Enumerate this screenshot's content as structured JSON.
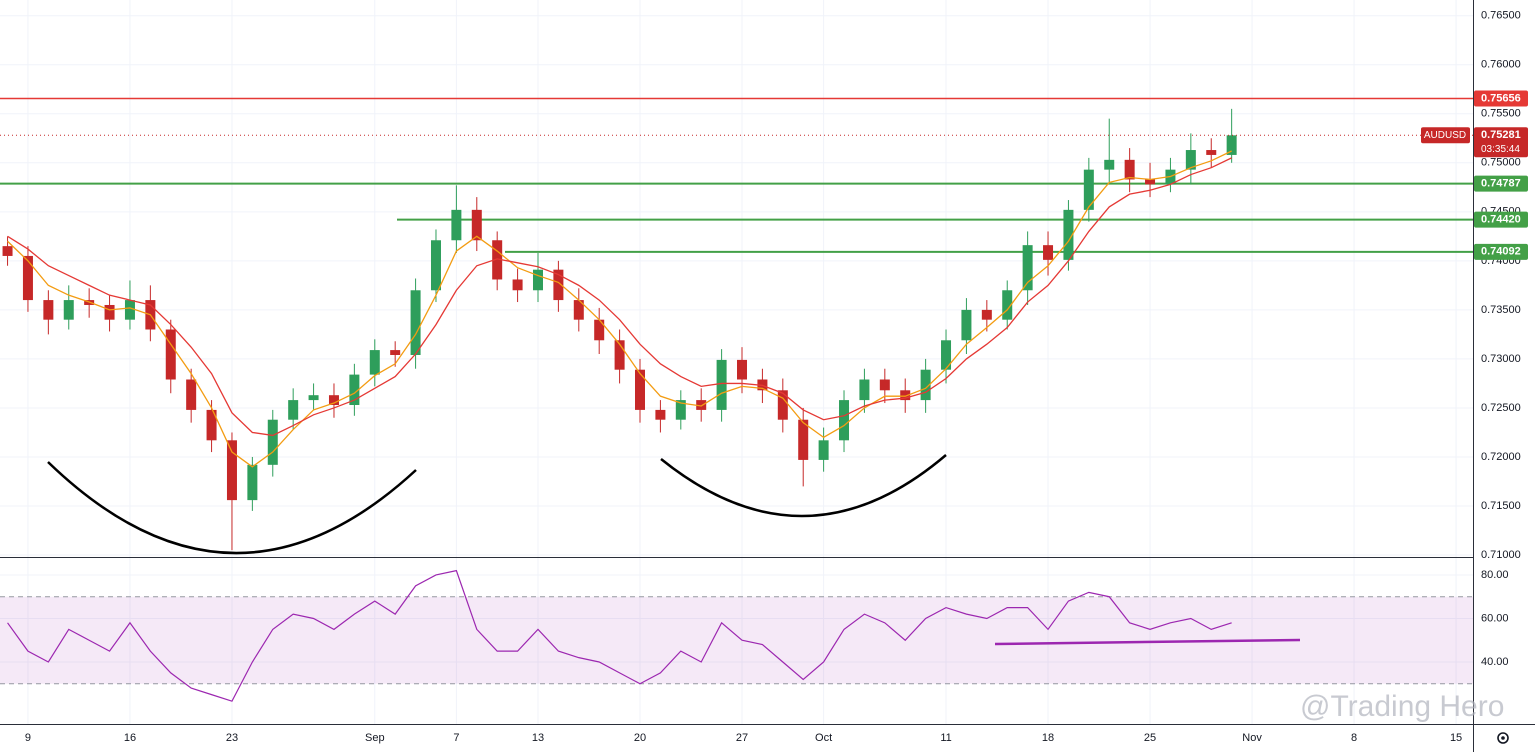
{
  "chart_data": [
    {
      "type": "candlestick",
      "symbol": "AUDUSD",
      "countdown": "03:35:44",
      "x": [
        -1,
        0,
        1,
        2,
        3,
        4,
        5,
        6,
        7,
        8,
        9,
        10,
        11,
        12,
        13,
        14,
        15,
        16,
        17,
        18,
        19,
        20,
        21,
        22,
        23,
        24,
        25,
        26,
        27,
        28,
        29,
        30,
        31,
        32,
        33,
        34,
        35,
        36,
        37,
        38,
        39,
        40,
        41,
        42,
        43,
        44,
        45,
        46,
        47,
        48,
        49,
        50,
        51,
        52,
        53,
        54,
        55,
        56,
        57,
        58,
        59
      ],
      "open": [
        0.7415,
        0.7405,
        0.736,
        0.734,
        0.736,
        0.7355,
        0.734,
        0.736,
        0.733,
        0.7279,
        0.7248,
        0.7217,
        0.7156,
        0.7192,
        0.7238,
        0.7258,
        0.7263,
        0.7253,
        0.7284,
        0.7309,
        0.7304,
        0.737,
        0.7421,
        0.7452,
        0.7421,
        0.7381,
        0.737,
        0.7391,
        0.736,
        0.734,
        0.7319,
        0.7289,
        0.7248,
        0.7238,
        0.7258,
        0.7248,
        0.7299,
        0.7279,
        0.7268,
        0.7238,
        0.7197,
        0.7217,
        0.7258,
        0.7279,
        0.7268,
        0.7258,
        0.7289,
        0.7319,
        0.735,
        0.734,
        0.737,
        0.7416,
        0.7401,
        0.7452,
        0.7493,
        0.7503,
        0.7483,
        0.7478,
        0.7493,
        0.7513,
        0.7508
      ],
      "high": [
        0.7425,
        0.7415,
        0.737,
        0.7375,
        0.7372,
        0.7365,
        0.738,
        0.7375,
        0.734,
        0.729,
        0.7258,
        0.7225,
        0.72,
        0.7248,
        0.727,
        0.7275,
        0.7275,
        0.7295,
        0.732,
        0.7318,
        0.7382,
        0.7432,
        0.7477,
        0.7465,
        0.743,
        0.7392,
        0.7408,
        0.74,
        0.7372,
        0.7352,
        0.733,
        0.73,
        0.7258,
        0.7268,
        0.727,
        0.731,
        0.7312,
        0.729,
        0.728,
        0.725,
        0.723,
        0.7268,
        0.729,
        0.729,
        0.728,
        0.73,
        0.733,
        0.7362,
        0.736,
        0.738,
        0.743,
        0.743,
        0.7462,
        0.7505,
        0.7545,
        0.7515,
        0.75,
        0.7505,
        0.753,
        0.7525,
        0.7555
      ],
      "low": [
        0.7395,
        0.7348,
        0.7325,
        0.733,
        0.7342,
        0.7328,
        0.733,
        0.7318,
        0.7265,
        0.7235,
        0.7205,
        0.7105,
        0.7145,
        0.718,
        0.7228,
        0.7248,
        0.724,
        0.7242,
        0.7272,
        0.7292,
        0.729,
        0.7358,
        0.7408,
        0.741,
        0.737,
        0.7358,
        0.7358,
        0.7348,
        0.7328,
        0.7305,
        0.7275,
        0.7235,
        0.7225,
        0.7228,
        0.7236,
        0.7236,
        0.7265,
        0.7255,
        0.7225,
        0.717,
        0.7185,
        0.7205,
        0.7245,
        0.7255,
        0.7245,
        0.7245,
        0.7275,
        0.7305,
        0.7328,
        0.733,
        0.7355,
        0.7385,
        0.739,
        0.744,
        0.748,
        0.747,
        0.7465,
        0.747,
        0.7478,
        0.7495,
        0.75
      ],
      "close": [
        0.7405,
        0.736,
        0.734,
        0.736,
        0.7355,
        0.734,
        0.736,
        0.733,
        0.7279,
        0.7248,
        0.7217,
        0.7156,
        0.7192,
        0.7238,
        0.7258,
        0.7263,
        0.7253,
        0.7284,
        0.7309,
        0.7304,
        0.737,
        0.7421,
        0.7452,
        0.7421,
        0.7381,
        0.737,
        0.7391,
        0.736,
        0.734,
        0.7319,
        0.7289,
        0.7248,
        0.7238,
        0.7258,
        0.7248,
        0.7299,
        0.7279,
        0.7268,
        0.7238,
        0.7197,
        0.7217,
        0.7258,
        0.7279,
        0.7268,
        0.7258,
        0.7289,
        0.7319,
        0.735,
        0.734,
        0.737,
        0.7416,
        0.7401,
        0.7452,
        0.7493,
        0.7503,
        0.7483,
        0.7478,
        0.7493,
        0.7513,
        0.7508,
        0.7528
      ],
      "up_color": "#2e9e5b",
      "down_color": "#c62828",
      "series": [
        {
          "color": "#f39c12",
          "values": [
            0.742,
            0.74,
            0.7375,
            0.7365,
            0.7358,
            0.735,
            0.7352,
            0.7345,
            0.7315,
            0.7285,
            0.725,
            0.7205,
            0.719,
            0.7205,
            0.7228,
            0.7248,
            0.7255,
            0.7265,
            0.7283,
            0.7295,
            0.7325,
            0.7365,
            0.741,
            0.7425,
            0.741,
            0.7393,
            0.7385,
            0.7378,
            0.736,
            0.734,
            0.7315,
            0.7285,
            0.7262,
            0.7255,
            0.7252,
            0.7265,
            0.7272,
            0.727,
            0.726,
            0.7235,
            0.722,
            0.7232,
            0.725,
            0.7262,
            0.7262,
            0.727,
            0.729,
            0.7315,
            0.7332,
            0.735,
            0.7378,
            0.7395,
            0.742,
            0.7455,
            0.748,
            0.7485,
            0.7483,
            0.7486,
            0.7495,
            0.7502,
            0.7512
          ]
        },
        {
          "color": "#e53935",
          "values": [
            0.7425,
            0.7412,
            0.7395,
            0.7385,
            0.7375,
            0.7365,
            0.736,
            0.7355,
            0.7335,
            0.7312,
            0.7285,
            0.7245,
            0.7225,
            0.7222,
            0.7232,
            0.7243,
            0.725,
            0.7258,
            0.727,
            0.7282,
            0.7305,
            0.7335,
            0.737,
            0.7395,
            0.7402,
            0.7398,
            0.7394,
            0.7386,
            0.7375,
            0.736,
            0.734,
            0.7315,
            0.7295,
            0.7282,
            0.7272,
            0.7275,
            0.7275,
            0.7273,
            0.7265,
            0.7248,
            0.7238,
            0.7242,
            0.7252,
            0.7258,
            0.726,
            0.7266,
            0.728,
            0.73,
            0.7315,
            0.7332,
            0.7358,
            0.7375,
            0.74,
            0.743,
            0.7455,
            0.7468,
            0.7472,
            0.7478,
            0.7488,
            0.7495,
            0.7505
          ]
        }
      ],
      "levels": [
        {
          "value": 0.75656,
          "label": "0.75656",
          "color": "#e53935"
        },
        {
          "value": 0.74787,
          "label": "0.74787",
          "color": "#43a047"
        },
        {
          "value": 0.7442,
          "label": "0.74420",
          "color": "#43a047"
        },
        {
          "value": 0.74092,
          "label": "0.74092",
          "color": "#43a047"
        }
      ],
      "last_price": {
        "value": 0.75281,
        "label": "0.75281"
      },
      "xlim": [
        -1.37,
        70.83
      ],
      "xticks": [
        {
          "value": 0,
          "label": "9"
        },
        {
          "value": 5,
          "label": "16"
        },
        {
          "value": 10,
          "label": "23"
        },
        {
          "value": 17,
          "label": "Sep"
        },
        {
          "value": 21,
          "label": "7"
        },
        {
          "value": 25,
          "label": "13"
        },
        {
          "value": 30,
          "label": "20"
        },
        {
          "value": 35,
          "label": "27"
        },
        {
          "value": 39,
          "label": "Oct"
        },
        {
          "value": 45,
          "label": "11"
        },
        {
          "value": 50,
          "label": "18"
        },
        {
          "value": 55,
          "label": "25"
        },
        {
          "value": 60,
          "label": "Nov"
        },
        {
          "value": 65,
          "label": "8"
        },
        {
          "value": 70,
          "label": "15"
        }
      ],
      "ylim": [
        0.7098,
        0.7666
      ],
      "yticks": [
        {
          "value": 0.71,
          "label": "0.71000"
        },
        {
          "value": 0.715,
          "label": "0.71500"
        },
        {
          "value": 0.72,
          "label": "0.72000"
        },
        {
          "value": 0.725,
          "label": "0.72500"
        },
        {
          "value": 0.73,
          "label": "0.73000"
        },
        {
          "value": 0.735,
          "label": "0.73500"
        },
        {
          "value": 0.74,
          "label": "0.74000"
        },
        {
          "value": 0.745,
          "label": "0.74500"
        },
        {
          "value": 0.75,
          "label": "0.75000"
        },
        {
          "value": 0.755,
          "label": "0.75500"
        },
        {
          "value": 0.76,
          "label": "0.76000"
        },
        {
          "value": 0.765,
          "label": "0.76500"
        }
      ],
      "grid": true
    },
    {
      "type": "line",
      "series": [
        {
          "color": "#9c27b0",
          "values": [
            58,
            45,
            40,
            55,
            50,
            45,
            58,
            45,
            35,
            28,
            25,
            22,
            40,
            55,
            62,
            60,
            55,
            62,
            68,
            62,
            75,
            80,
            82,
            55,
            45,
            45,
            55,
            45,
            42,
            40,
            35,
            30,
            35,
            45,
            40,
            58,
            50,
            48,
            40,
            32,
            40,
            55,
            62,
            58,
            50,
            60,
            65,
            62,
            60,
            65,
            65,
            55,
            68,
            72,
            70,
            58,
            55,
            58,
            60,
            55,
            58
          ]
        }
      ],
      "band": [
        30,
        70
      ],
      "band_color": "#9c27b0",
      "ylim": [
        11.5,
        87.8
      ],
      "yticks": [
        {
          "value": 40,
          "label": "40.00"
        },
        {
          "value": 60,
          "label": "60.00"
        },
        {
          "value": 80,
          "label": "80.00"
        }
      ],
      "grid": true
    }
  ],
  "watermark": "@Trading Hero"
}
